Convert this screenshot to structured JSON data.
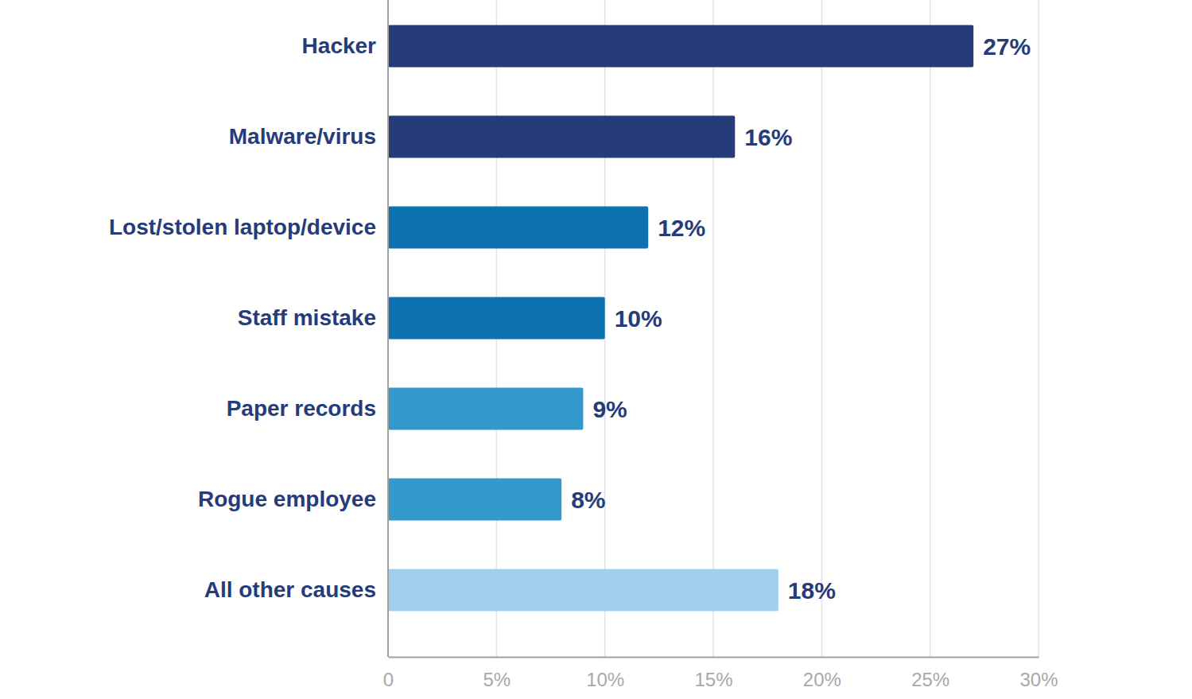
{
  "chart_data": {
    "type": "bar",
    "orientation": "horizontal",
    "categories": [
      "Hacker",
      "Malware/virus",
      "Lost/stolen laptop/device",
      "Staff mistake",
      "Paper records",
      "Rogue employee",
      "All other causes"
    ],
    "values": [
      27,
      16,
      12,
      10,
      9,
      8,
      18
    ],
    "value_labels": [
      "27%",
      "16%",
      "12%",
      "10%",
      "9%",
      "8%",
      "18%"
    ],
    "colors": [
      "#253c78",
      "#253c78",
      "#0e72b1",
      "#0e72b1",
      "#3399cc",
      "#3399cc",
      "#9fcfed"
    ],
    "xlim": [
      0,
      30
    ],
    "xticks": [
      0,
      {
        "value": 5,
        "label": "5%"
      },
      {
        "value": 10,
        "label": "10%"
      },
      {
        "value": 15,
        "label": "15%"
      },
      {
        "value": 20,
        "label": "20%"
      },
      {
        "value": 25,
        "label": "25%"
      },
      {
        "value": 30,
        "label": "30%"
      }
    ],
    "grid": true,
    "data_labels": true
  }
}
